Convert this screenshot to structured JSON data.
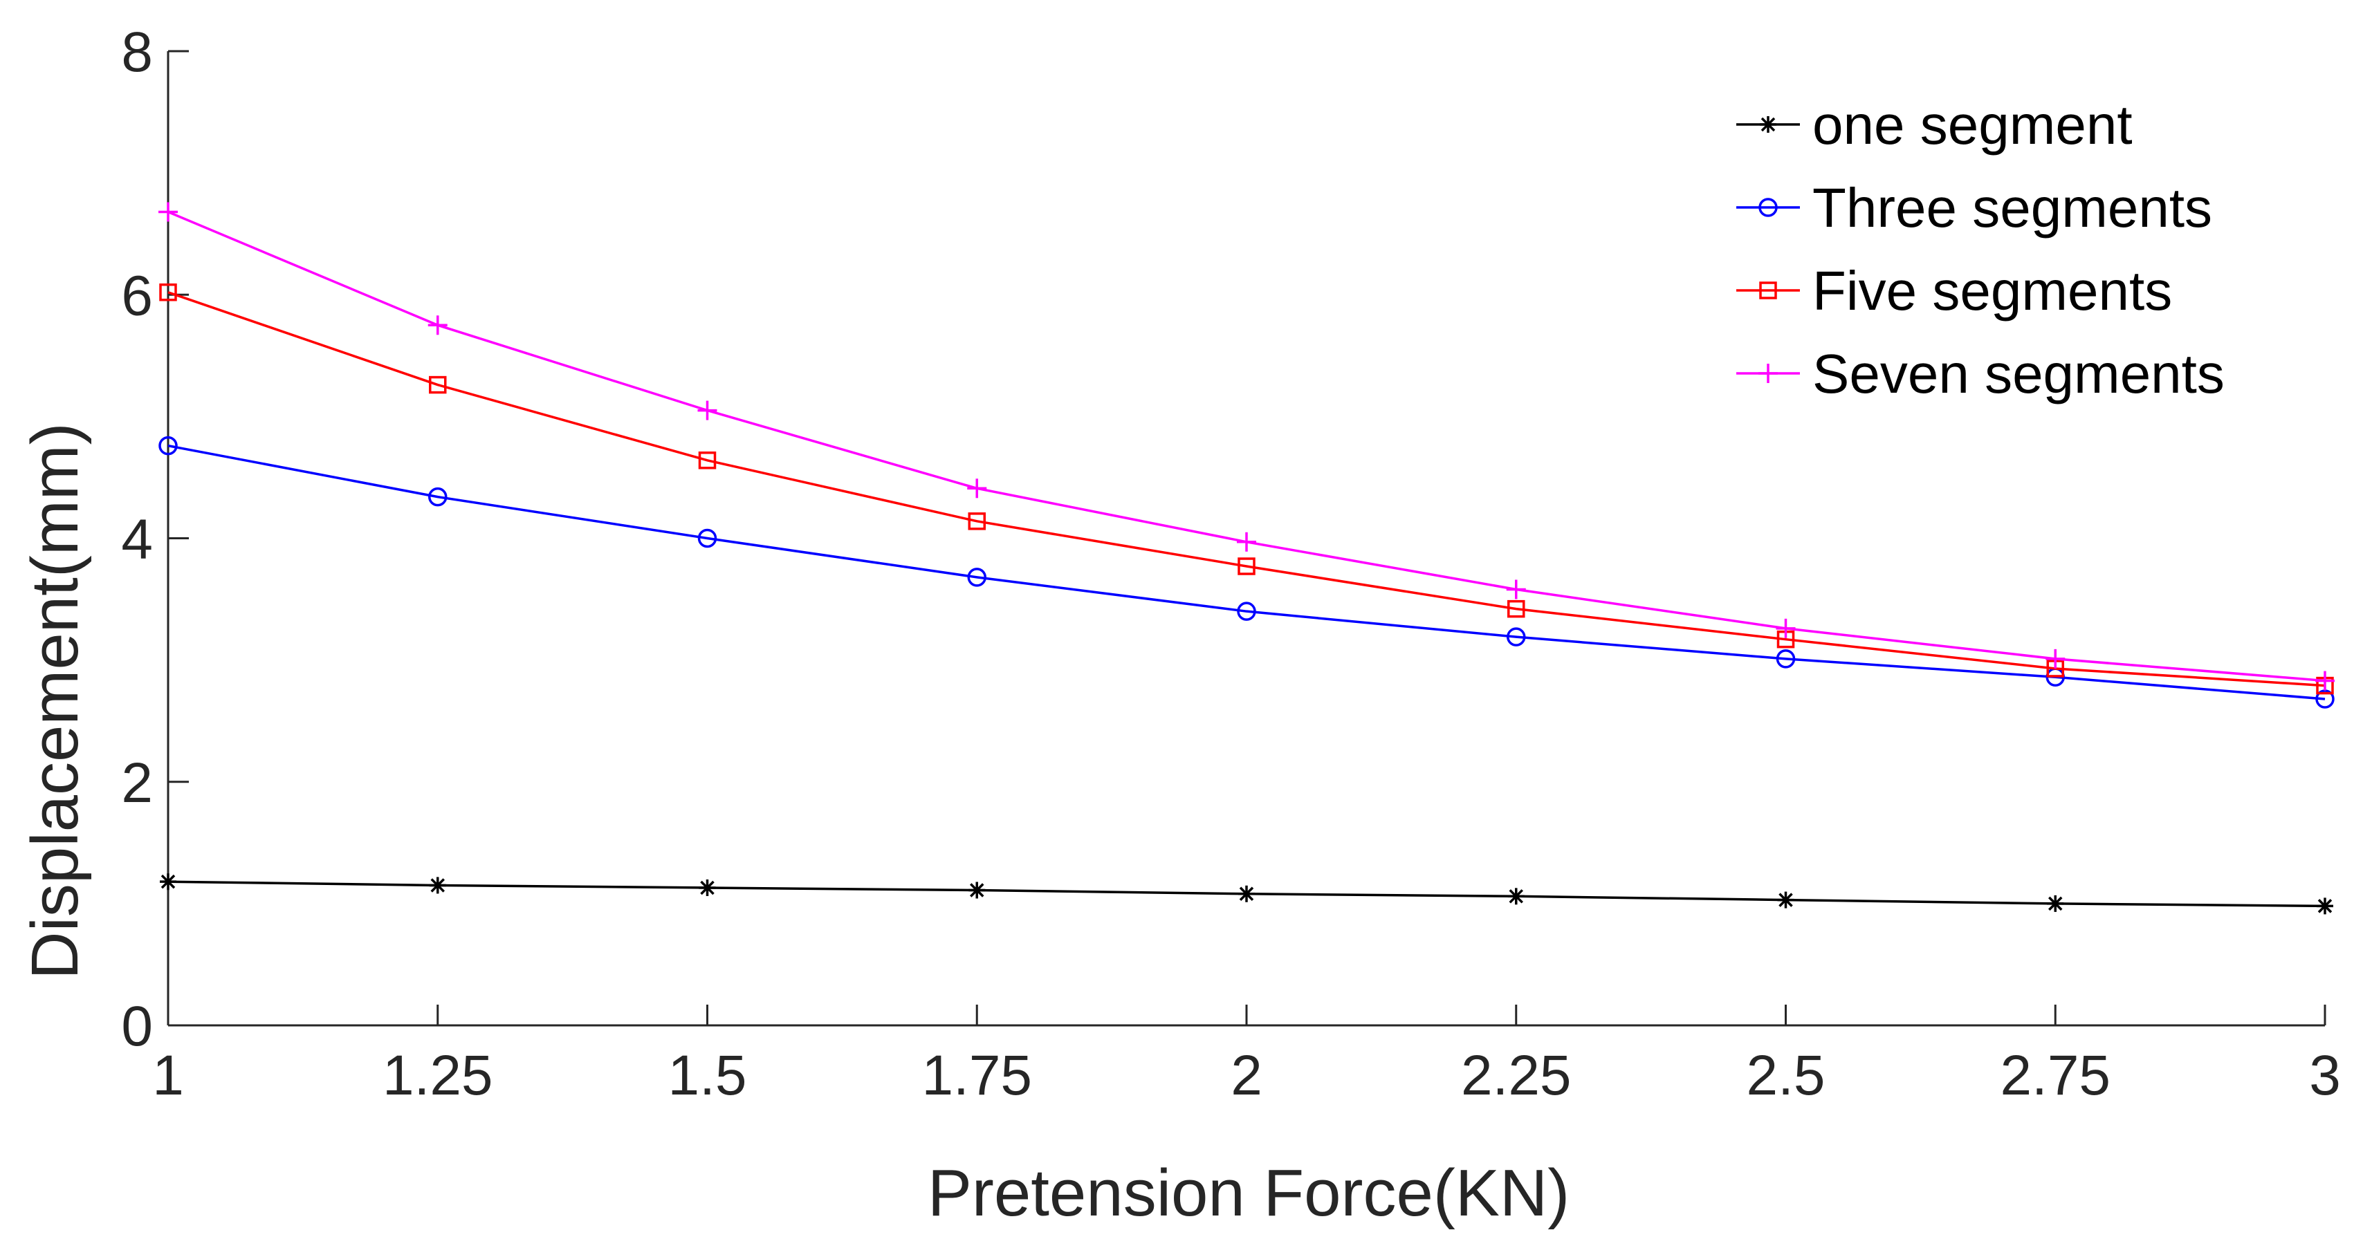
{
  "chart_data": {
    "type": "line",
    "title": "",
    "xlabel": "Pretension Force(KN)",
    "ylabel": "Displacement(mm)",
    "x": [
      1,
      1.25,
      1.5,
      1.75,
      2,
      2.25,
      2.5,
      2.75,
      3
    ],
    "xlim": [
      1,
      3
    ],
    "ylim": [
      0,
      8
    ],
    "xticks": [
      "1",
      "1.25",
      "1.5",
      "1.75",
      "2",
      "2.25",
      "2.5",
      "2.75",
      "3"
    ],
    "yticks": [
      "0",
      "2",
      "4",
      "6",
      "8"
    ],
    "grid": false,
    "legend_position": "top-right",
    "series": [
      {
        "name": "one segment",
        "color": "#000000",
        "marker": "star",
        "values": [
          1.18,
          1.15,
          1.13,
          1.11,
          1.08,
          1.06,
          1.03,
          1.0,
          0.98
        ]
      },
      {
        "name": "Three segments",
        "color": "#0000ff",
        "marker": "circle",
        "values": [
          4.76,
          4.34,
          4.0,
          3.68,
          3.4,
          3.19,
          3.01,
          2.86,
          2.68
        ]
      },
      {
        "name": "Five segments",
        "color": "#ff0000",
        "marker": "square",
        "values": [
          6.02,
          5.26,
          4.64,
          4.14,
          3.77,
          3.42,
          3.17,
          2.93,
          2.79
        ]
      },
      {
        "name": "Seven segments",
        "color": "#ff00ff",
        "marker": "plus",
        "values": [
          6.68,
          5.75,
          5.05,
          4.41,
          3.97,
          3.58,
          3.26,
          3.01,
          2.83
        ]
      }
    ]
  }
}
